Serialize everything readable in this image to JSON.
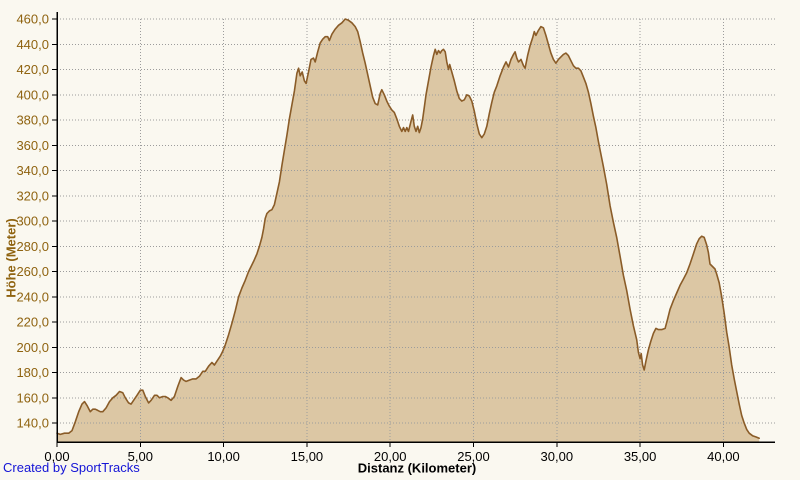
{
  "credit": "Created by SportTracks",
  "colors": {
    "background": "#faf8f0",
    "area_fill": "#dcc7a4",
    "area_line": "#8a5c28",
    "grid": "#9c9c9c",
    "axis": "#000000",
    "y_label": "#8f6310",
    "x_label": "#000000",
    "credit": "#1414d6"
  },
  "chart_data": {
    "type": "area",
    "title": "",
    "xlabel": "Distanz (Kilometer)",
    "ylabel": "Höhe (Meter)",
    "xlim": [
      0,
      43.1
    ],
    "ylim": [
      125,
      460
    ],
    "grid": true,
    "legend_position": "none",
    "x_ticks": [
      0,
      5,
      10,
      15,
      20,
      25,
      30,
      35,
      40
    ],
    "x_tick_labels": [
      "0,00",
      "5,00",
      "10,00",
      "15,00",
      "20,00",
      "25,00",
      "30,00",
      "35,00",
      "40,00"
    ],
    "y_ticks": [
      140,
      160,
      180,
      200,
      220,
      240,
      260,
      280,
      300,
      320,
      340,
      360,
      380,
      400,
      420,
      440,
      460
    ],
    "y_tick_labels": [
      "140,0",
      "160,0",
      "180,0",
      "200,0",
      "220,0",
      "240,0",
      "260,0",
      "280,0",
      "300,0",
      "320,0",
      "340,0",
      "360,0",
      "380,0",
      "400,0",
      "420,0",
      "440,0",
      "460,0"
    ],
    "series": [
      {
        "name": "Höhe",
        "points": [
          [
            0,
            132
          ],
          [
            0.2,
            131
          ],
          [
            0.45,
            132
          ],
          [
            0.7,
            132
          ],
          [
            0.9,
            134
          ],
          [
            1.1,
            141
          ],
          [
            1.3,
            149
          ],
          [
            1.5,
            155
          ],
          [
            1.65,
            157
          ],
          [
            1.8,
            154
          ],
          [
            2,
            149
          ],
          [
            2.15,
            151
          ],
          [
            2.3,
            151
          ],
          [
            2.45,
            150
          ],
          [
            2.6,
            149
          ],
          [
            2.75,
            149
          ],
          [
            2.95,
            152
          ],
          [
            3.15,
            157
          ],
          [
            3.35,
            160
          ],
          [
            3.55,
            162
          ],
          [
            3.75,
            165
          ],
          [
            3.95,
            164
          ],
          [
            4.1,
            160
          ],
          [
            4.3,
            156
          ],
          [
            4.45,
            155
          ],
          [
            4.6,
            158
          ],
          [
            4.8,
            162
          ],
          [
            5,
            166
          ],
          [
            5.15,
            166
          ],
          [
            5.3,
            161
          ],
          [
            5.5,
            156
          ],
          [
            5.65,
            158
          ],
          [
            5.85,
            162
          ],
          [
            6,
            162
          ],
          [
            6.15,
            160
          ],
          [
            6.35,
            161
          ],
          [
            6.5,
            161
          ],
          [
            6.65,
            160
          ],
          [
            6.85,
            158
          ],
          [
            7.05,
            161
          ],
          [
            7.25,
            169
          ],
          [
            7.45,
            176
          ],
          [
            7.6,
            174
          ],
          [
            7.75,
            173
          ],
          [
            7.95,
            174
          ],
          [
            8.15,
            175
          ],
          [
            8.35,
            175
          ],
          [
            8.55,
            177
          ],
          [
            8.75,
            181
          ],
          [
            8.9,
            181
          ],
          [
            9.1,
            185
          ],
          [
            9.3,
            188
          ],
          [
            9.45,
            186
          ],
          [
            9.6,
            189
          ],
          [
            9.8,
            193
          ],
          [
            9.95,
            197
          ],
          [
            10.1,
            202
          ],
          [
            10.3,
            210
          ],
          [
            10.5,
            219
          ],
          [
            10.7,
            229
          ],
          [
            10.9,
            240
          ],
          [
            11.1,
            247
          ],
          [
            11.3,
            253
          ],
          [
            11.5,
            260
          ],
          [
            11.65,
            264
          ],
          [
            11.8,
            268
          ],
          [
            12,
            274
          ],
          [
            12.15,
            280
          ],
          [
            12.3,
            287
          ],
          [
            12.4,
            294
          ],
          [
            12.5,
            302
          ],
          [
            12.6,
            306
          ],
          [
            12.75,
            308
          ],
          [
            12.9,
            309
          ],
          [
            13.05,
            313
          ],
          [
            13.2,
            322
          ],
          [
            13.35,
            331
          ],
          [
            13.5,
            344
          ],
          [
            13.65,
            356
          ],
          [
            13.8,
            368
          ],
          [
            13.95,
            381
          ],
          [
            14.1,
            392
          ],
          [
            14.25,
            403
          ],
          [
            14.4,
            417
          ],
          [
            14.5,
            421
          ],
          [
            14.6,
            415
          ],
          [
            14.72,
            418
          ],
          [
            14.85,
            411
          ],
          [
            14.95,
            409
          ],
          [
            15.1,
            418
          ],
          [
            15.25,
            428
          ],
          [
            15.4,
            429
          ],
          [
            15.5,
            426
          ],
          [
            15.65,
            434
          ],
          [
            15.8,
            441
          ],
          [
            15.95,
            444
          ],
          [
            16.1,
            446
          ],
          [
            16.25,
            446
          ],
          [
            16.35,
            443
          ],
          [
            16.5,
            448
          ],
          [
            16.7,
            452
          ],
          [
            16.9,
            455
          ],
          [
            17.1,
            457
          ],
          [
            17.3,
            460
          ],
          [
            17.5,
            459
          ],
          [
            17.7,
            457
          ],
          [
            17.9,
            454
          ],
          [
            18.05,
            450
          ],
          [
            18.2,
            442
          ],
          [
            18.35,
            433
          ],
          [
            18.5,
            425
          ],
          [
            18.65,
            416
          ],
          [
            18.8,
            407
          ],
          [
            18.95,
            398
          ],
          [
            19.1,
            393
          ],
          [
            19.25,
            392
          ],
          [
            19.4,
            401
          ],
          [
            19.5,
            404
          ],
          [
            19.65,
            400
          ],
          [
            19.8,
            395
          ],
          [
            19.95,
            391
          ],
          [
            20.1,
            388
          ],
          [
            20.25,
            386
          ],
          [
            20.4,
            381
          ],
          [
            20.55,
            375
          ],
          [
            20.7,
            371
          ],
          [
            20.8,
            374
          ],
          [
            20.9,
            371
          ],
          [
            21,
            374
          ],
          [
            21.1,
            371
          ],
          [
            21.25,
            379
          ],
          [
            21.35,
            384
          ],
          [
            21.45,
            375
          ],
          [
            21.55,
            371
          ],
          [
            21.65,
            375
          ],
          [
            21.75,
            370
          ],
          [
            21.85,
            374
          ],
          [
            21.95,
            381
          ],
          [
            22.05,
            390
          ],
          [
            22.15,
            400
          ],
          [
            22.3,
            411
          ],
          [
            22.45,
            422
          ],
          [
            22.6,
            431
          ],
          [
            22.7,
            436
          ],
          [
            22.8,
            432
          ],
          [
            22.9,
            435
          ],
          [
            23,
            433
          ],
          [
            23.1,
            435
          ],
          [
            23.2,
            436
          ],
          [
            23.3,
            434
          ],
          [
            23.4,
            426
          ],
          [
            23.5,
            420
          ],
          [
            23.57,
            424
          ],
          [
            23.7,
            418
          ],
          [
            23.85,
            411
          ],
          [
            24,
            403
          ],
          [
            24.15,
            397
          ],
          [
            24.3,
            395
          ],
          [
            24.45,
            396
          ],
          [
            24.6,
            400
          ],
          [
            24.75,
            399
          ],
          [
            24.9,
            395
          ],
          [
            25.05,
            387
          ],
          [
            25.2,
            377
          ],
          [
            25.35,
            369
          ],
          [
            25.5,
            366
          ],
          [
            25.65,
            369
          ],
          [
            25.8,
            375
          ],
          [
            25.95,
            385
          ],
          [
            26.1,
            394
          ],
          [
            26.25,
            402
          ],
          [
            26.4,
            407
          ],
          [
            26.6,
            415
          ],
          [
            26.8,
            422
          ],
          [
            26.95,
            426
          ],
          [
            27.1,
            422
          ],
          [
            27.25,
            428
          ],
          [
            27.4,
            432
          ],
          [
            27.5,
            434
          ],
          [
            27.6,
            429
          ],
          [
            27.7,
            426
          ],
          [
            27.85,
            428
          ],
          [
            28,
            423
          ],
          [
            28.1,
            421
          ],
          [
            28.25,
            431
          ],
          [
            28.4,
            439
          ],
          [
            28.55,
            445
          ],
          [
            28.65,
            450
          ],
          [
            28.75,
            447
          ],
          [
            28.9,
            451
          ],
          [
            29.05,
            454
          ],
          [
            29.2,
            453
          ],
          [
            29.35,
            447
          ],
          [
            29.5,
            440
          ],
          [
            29.65,
            433
          ],
          [
            29.8,
            428
          ],
          [
            29.95,
            425
          ],
          [
            30.1,
            428
          ],
          [
            30.25,
            430
          ],
          [
            30.4,
            432
          ],
          [
            30.55,
            433
          ],
          [
            30.7,
            431
          ],
          [
            30.85,
            427
          ],
          [
            31,
            423
          ],
          [
            31.15,
            421
          ],
          [
            31.3,
            421
          ],
          [
            31.45,
            419
          ],
          [
            31.6,
            414
          ],
          [
            31.75,
            409
          ],
          [
            31.9,
            402
          ],
          [
            32.05,
            393
          ],
          [
            32.2,
            383
          ],
          [
            32.35,
            374
          ],
          [
            32.5,
            363
          ],
          [
            32.65,
            353
          ],
          [
            32.8,
            343
          ],
          [
            33,
            329
          ],
          [
            33.2,
            312
          ],
          [
            33.4,
            299
          ],
          [
            33.6,
            287
          ],
          [
            33.8,
            272
          ],
          [
            34,
            257
          ],
          [
            34.2,
            245
          ],
          [
            34.4,
            230
          ],
          [
            34.6,
            217
          ],
          [
            34.8,
            206
          ],
          [
            34.9,
            196
          ],
          [
            35,
            191
          ],
          [
            35.07,
            195
          ],
          [
            35.15,
            186
          ],
          [
            35.25,
            182
          ],
          [
            35.35,
            189
          ],
          [
            35.5,
            198
          ],
          [
            35.65,
            205
          ],
          [
            35.8,
            211
          ],
          [
            35.95,
            215
          ],
          [
            36.1,
            214
          ],
          [
            36.3,
            214
          ],
          [
            36.5,
            215
          ],
          [
            36.65,
            222
          ],
          [
            36.8,
            230
          ],
          [
            37,
            237
          ],
          [
            37.2,
            243
          ],
          [
            37.4,
            249
          ],
          [
            37.6,
            254
          ],
          [
            37.8,
            259
          ],
          [
            38,
            266
          ],
          [
            38.2,
            274
          ],
          [
            38.4,
            282
          ],
          [
            38.55,
            286
          ],
          [
            38.7,
            288
          ],
          [
            38.85,
            287
          ],
          [
            39,
            281
          ],
          [
            39.1,
            275
          ],
          [
            39.2,
            266
          ],
          [
            39.35,
            264
          ],
          [
            39.5,
            262
          ],
          [
            39.6,
            258
          ],
          [
            39.75,
            251
          ],
          [
            39.9,
            240
          ],
          [
            40.05,
            227
          ],
          [
            40.2,
            212
          ],
          [
            40.35,
            200
          ],
          [
            40.5,
            186
          ],
          [
            40.65,
            175
          ],
          [
            40.8,
            165
          ],
          [
            40.95,
            155
          ],
          [
            41.1,
            146
          ],
          [
            41.25,
            140
          ],
          [
            41.4,
            135
          ],
          [
            41.55,
            132
          ],
          [
            41.75,
            130
          ],
          [
            41.95,
            129
          ],
          [
            42.15,
            128
          ]
        ]
      }
    ]
  }
}
